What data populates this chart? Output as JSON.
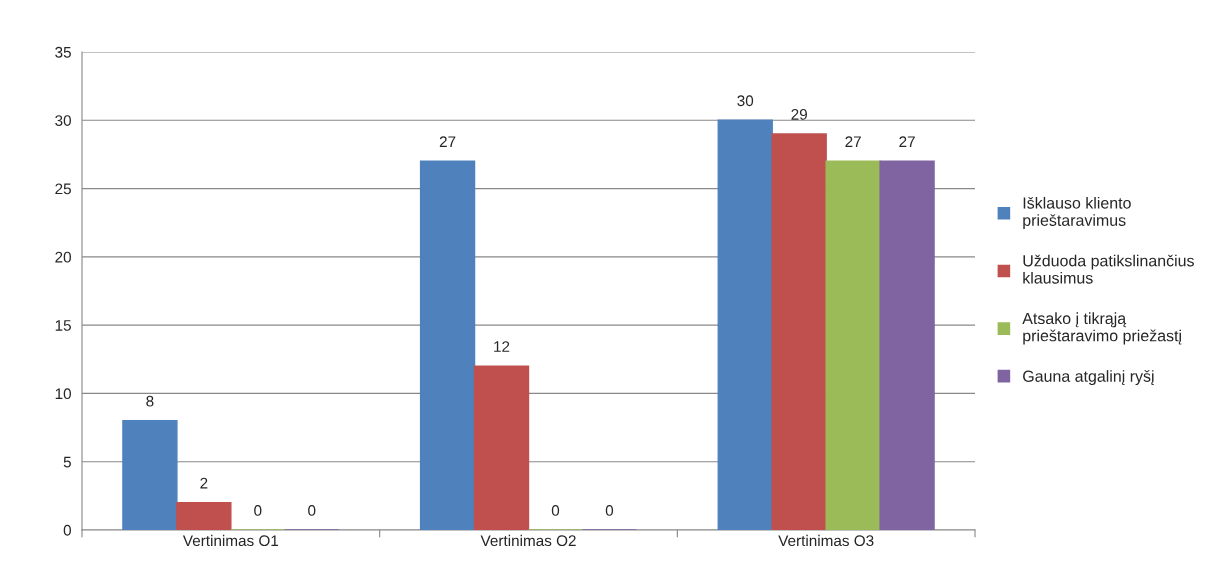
{
  "chart_data": {
    "type": "bar",
    "categories": [
      "Vertinimas O1",
      "Vertinimas O2",
      "Vertinimas O3"
    ],
    "series": [
      {
        "name": "Išklauso kliento prieštaravimus",
        "color": "#4f81bd",
        "values": [
          8,
          27,
          30
        ]
      },
      {
        "name": "Užduoda patikslinančius klausimus",
        "color": "#c0504d",
        "values": [
          2,
          12,
          29
        ]
      },
      {
        "name": "Atsako į tikrąją prieštaravimo priežastį",
        "color": "#9bbb59",
        "values": [
          0,
          0,
          27
        ]
      },
      {
        "name": "Gauna atgalinį ryšį",
        "color": "#8064a2",
        "values": [
          0,
          0,
          27
        ]
      }
    ],
    "ylim": [
      0,
      35
    ],
    "yticks": [
      0,
      5,
      10,
      15,
      20,
      25,
      30,
      35
    ],
    "grid": "y",
    "legend": "right",
    "data_labels": true
  }
}
